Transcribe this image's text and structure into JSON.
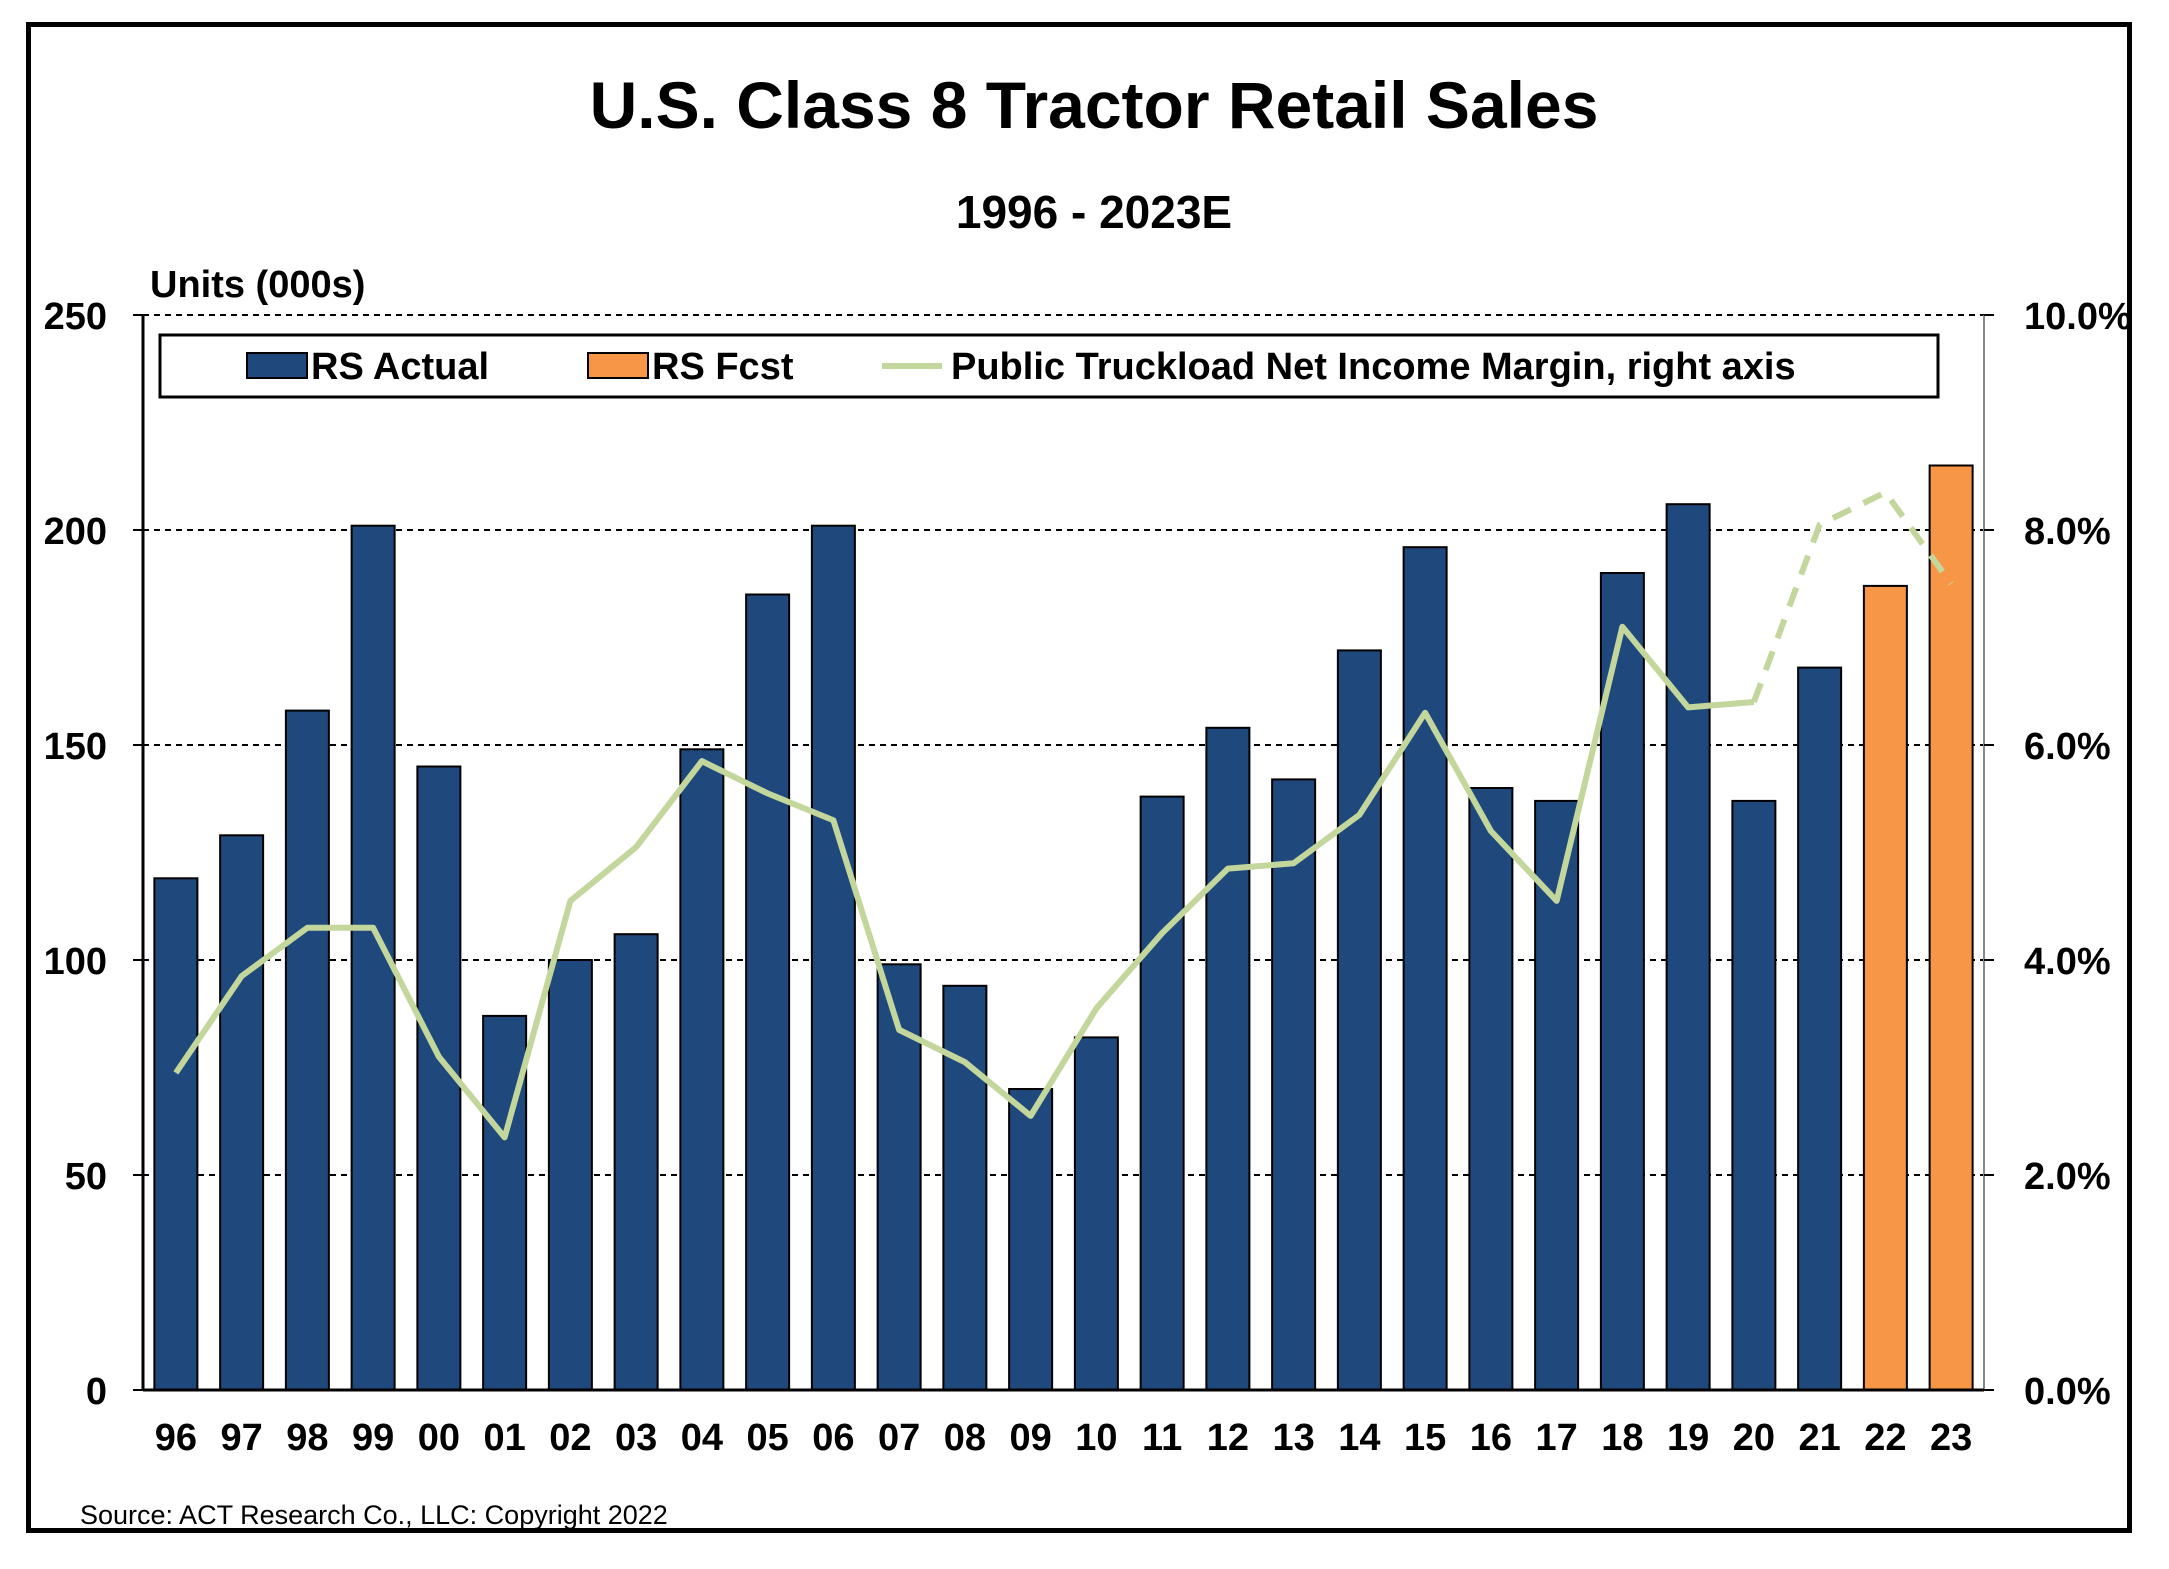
{
  "chart_data": {
    "type": "bar",
    "title": "U.S. Class 8 Tractor Retail Sales",
    "subtitle": "1996 - 2023E",
    "ylabel": "Units (000s)",
    "ylim": [
      0,
      250
    ],
    "y_ticks": [
      "0",
      "50",
      "100",
      "150",
      "200",
      "250"
    ],
    "y2lim": [
      0,
      10
    ],
    "y2_ticks": [
      "0.0%",
      "2.0%",
      "4.0%",
      "6.0%",
      "8.0%",
      "10.0%"
    ],
    "categories": [
      "96",
      "97",
      "98",
      "99",
      "00",
      "01",
      "02",
      "03",
      "04",
      "05",
      "06",
      "07",
      "08",
      "09",
      "10",
      "11",
      "12",
      "13",
      "14",
      "15",
      "16",
      "17",
      "18",
      "19",
      "20",
      "21",
      "22",
      "23"
    ],
    "series": [
      {
        "name": "RS Actual",
        "kind": "bar",
        "color": "#1F497D",
        "values": [
          119,
          129,
          158,
          201,
          145,
          87,
          100,
          106,
          149,
          185,
          201,
          99,
          94,
          70,
          82,
          138,
          154,
          142,
          172,
          196,
          140,
          137,
          190,
          206,
          137,
          168,
          null,
          null
        ]
      },
      {
        "name": "RS Fcst",
        "kind": "bar",
        "color": "#F79646",
        "values": [
          null,
          null,
          null,
          null,
          null,
          null,
          null,
          null,
          null,
          null,
          null,
          null,
          null,
          null,
          null,
          null,
          null,
          null,
          null,
          null,
          null,
          null,
          null,
          null,
          null,
          null,
          187,
          215
        ]
      },
      {
        "name": "Public Truckload Net Income Margin, right axis",
        "kind": "line",
        "axis": "right",
        "color": "#C3D69B",
        "values": [
          2.95,
          3.85,
          4.3,
          4.3,
          3.1,
          2.35,
          4.55,
          5.05,
          5.85,
          5.55,
          5.3,
          3.35,
          3.05,
          2.55,
          3.55,
          4.25,
          4.85,
          4.9,
          5.35,
          6.3,
          5.2,
          4.55,
          7.1,
          6.35,
          6.4,
          8.05,
          8.35,
          7.5
        ],
        "dashed_from_index": 24
      }
    ],
    "legend_position": "top",
    "grid": true
  },
  "source": "Source:  ACT Research Co., LLC: Copyright  2022"
}
